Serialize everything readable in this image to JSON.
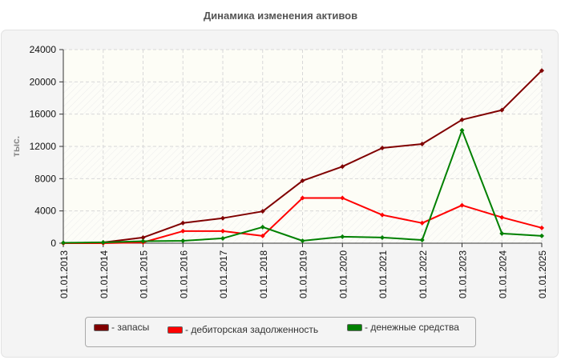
{
  "title": "Динамика изменения активов",
  "y_axis_label": "тыс.",
  "chart_data": {
    "type": "line",
    "title": "Динамика изменения активов",
    "xlabel": "",
    "ylabel": "тыс.",
    "ylim": [
      0,
      24000
    ],
    "yticks": [
      0,
      4000,
      8000,
      12000,
      16000,
      20000,
      24000
    ],
    "grid": true,
    "legend_position": "bottom",
    "categories": [
      "01.01.2013",
      "01.01.2014",
      "01.01.2015",
      "01.01.2016",
      "01.01.2017",
      "01.01.2018",
      "01.01.2019",
      "01.01.2020",
      "01.01.2021",
      "01.01.2022",
      "01.01.2023",
      "01.01.2024",
      "01.01.2025"
    ],
    "series": [
      {
        "name": "запасы",
        "color": "#800000",
        "values": [
          0,
          100,
          700,
          2500,
          3100,
          3950,
          7750,
          9500,
          11800,
          12300,
          15300,
          16500,
          21400
        ]
      },
      {
        "name": "дебиторская задолженность",
        "color": "#ff0000",
        "values": [
          0,
          0,
          100,
          1500,
          1500,
          900,
          5600,
          5600,
          3500,
          2500,
          4700,
          3200,
          1900
        ]
      },
      {
        "name": "денежные средства",
        "color": "#008000",
        "values": [
          50,
          100,
          250,
          300,
          600,
          2000,
          300,
          800,
          700,
          400,
          14000,
          1200,
          900
        ]
      }
    ]
  },
  "legend": [
    {
      "label": "- запасы",
      "color": "#800000"
    },
    {
      "label": "- дебиторская задолженность",
      "color": "#ff0000"
    },
    {
      "label": "- денежные средства",
      "color": "#008000"
    }
  ]
}
